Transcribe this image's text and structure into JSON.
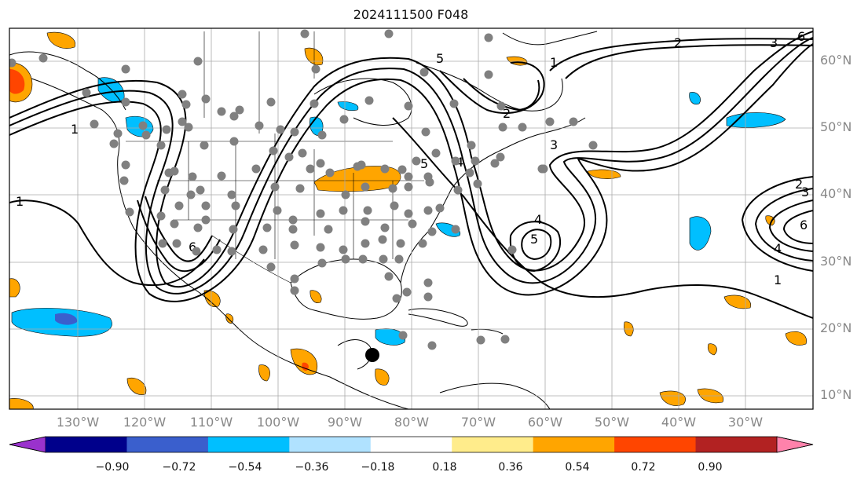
{
  "title": "2024111500 F048",
  "map": {
    "lat_labels": [
      "60°N",
      "50°N",
      "40°N",
      "30°N",
      "20°N",
      "10°N"
    ],
    "lon_labels": [
      "130°W",
      "120°W",
      "110°W",
      "100°W",
      "90°W",
      "80°W",
      "70°W",
      "60°W",
      "50°W",
      "40°W",
      "30°W"
    ],
    "gridlines": true
  },
  "colorbar": {
    "colors": [
      "#9a32cd",
      "#00008b",
      "#3a5fcd",
      "#00bfff",
      "#b0e2ff",
      "#ffffff",
      "#ffec8b",
      "#ffa500",
      "#ff4500",
      "#b22222",
      "#ff82ab"
    ],
    "tick_labels": [
      "−0.90",
      "−0.72",
      "−0.54",
      "−0.36",
      "−0.18",
      "0.18",
      "0.36",
      "0.54",
      "0.72",
      "0.90"
    ],
    "extend": "both"
  },
  "contour_labels": [
    "1",
    "2",
    "3",
    "4",
    "5",
    "6",
    "1",
    "2",
    "3",
    "4",
    "5",
    "6",
    "1",
    "2",
    "3",
    "4",
    "5",
    "6",
    "1"
  ],
  "markers": {
    "station_color": "#808080",
    "center_marker_color": "#000000"
  }
}
